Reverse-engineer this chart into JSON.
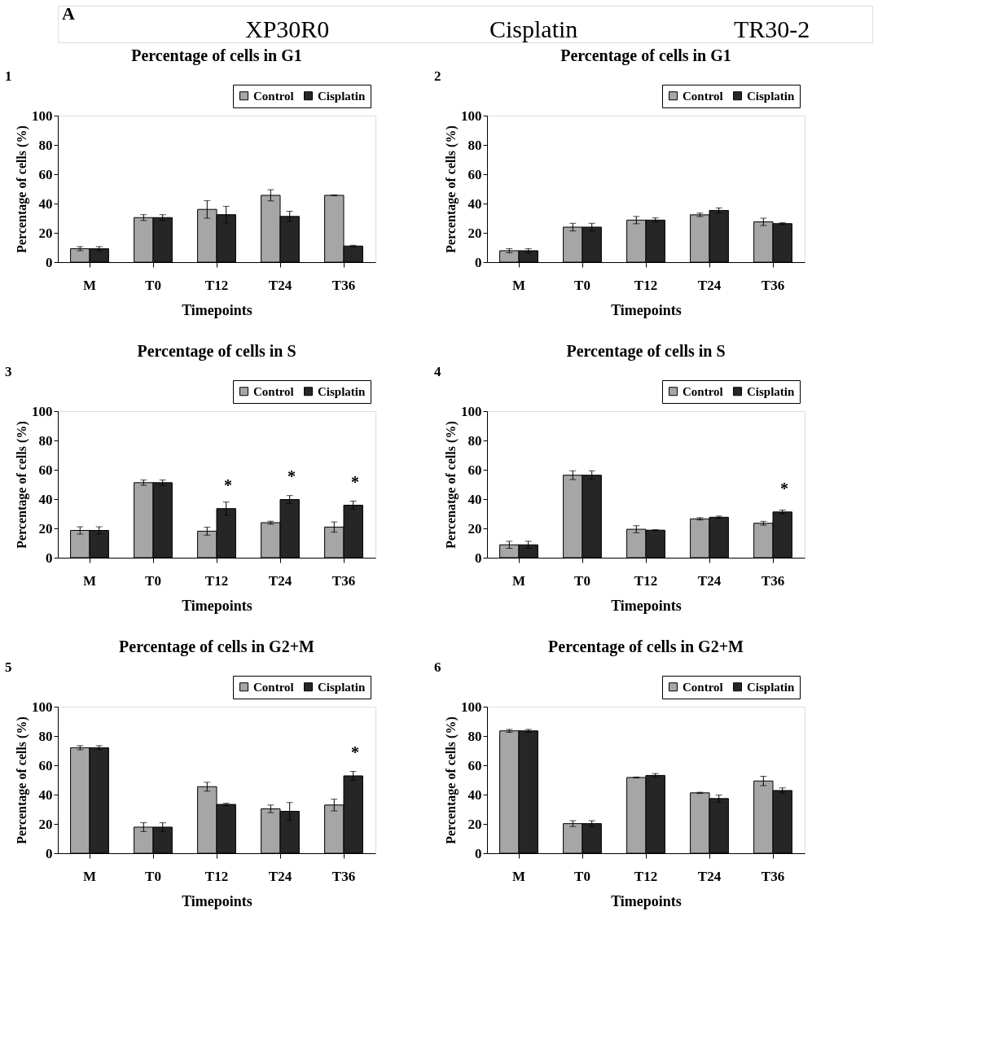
{
  "chart_data": [
    {
      "type": "other",
      "annotations": [
        "A",
        "XP30R0",
        "Cisplatin",
        "TR30-2"
      ]
    },
    {
      "type": "bar",
      "title": "Percentage of cells in G1",
      "xlabel": "Timepoints",
      "ylabel": "Percentage of cells (%)",
      "annotations": [
        "1"
      ],
      "categories": [
        "M",
        "T0",
        "T12",
        "T24",
        "T36"
      ],
      "ylim": [
        0,
        100
      ],
      "yticks": [
        0,
        20,
        40,
        60,
        80,
        100
      ],
      "legend": "top right",
      "grid": false,
      "series": [
        {
          "name": "Control",
          "color": "#a6a6a6",
          "values": [
            9.2,
            30.4,
            36,
            45.6,
            45.6
          ],
          "errors": [
            1.4,
            2,
            6,
            3.8,
            0.3
          ]
        },
        {
          "name": "Cisplatin",
          "color": "#262626",
          "values": [
            9.2,
            30.4,
            32.4,
            31.2,
            11
          ],
          "errors": [
            1.4,
            2,
            5.7,
            3.5,
            0.5
          ]
        }
      ]
    },
    {
      "type": "bar",
      "title": "Percentage of cells in G1",
      "xlabel": "Timepoints",
      "ylabel": "Percentage of cells (%)",
      "annotations": [
        "2"
      ],
      "categories": [
        "M",
        "T0",
        "T12",
        "T24",
        "T36"
      ],
      "ylim": [
        0,
        100
      ],
      "yticks": [
        0,
        20,
        40,
        60,
        80,
        100
      ],
      "legend": "top right",
      "grid": false,
      "series": [
        {
          "name": "Control",
          "color": "#a6a6a6",
          "values": [
            7.8,
            23.9,
            28.7,
            32.3,
            27.5
          ],
          "errors": [
            1.4,
            2.6,
            2.5,
            1.2,
            2.5
          ]
        },
        {
          "name": "Cisplatin",
          "color": "#262626",
          "values": [
            7.8,
            23.9,
            28.7,
            35.3,
            26.3
          ],
          "errors": [
            1.4,
            2.6,
            1.5,
            1.7,
            0.7
          ]
        }
      ]
    },
    {
      "type": "bar",
      "title": "Percentage of cells in S",
      "xlabel": "Timepoints",
      "ylabel": "Percentage of cells (%)",
      "annotations": [
        "3",
        {
          "text": "*",
          "x": "T12",
          "y": 33.5
        },
        {
          "text": "*",
          "x": "T24",
          "y": 39.7
        },
        {
          "text": "*",
          "x": "T36",
          "y": 35.8
        }
      ],
      "categories": [
        "M",
        "T0",
        "T12",
        "T24",
        "T36"
      ],
      "ylim": [
        0,
        100
      ],
      "yticks": [
        0,
        20,
        40,
        60,
        80,
        100
      ],
      "legend": "top right",
      "grid": false,
      "series": [
        {
          "name": "Control",
          "color": "#a6a6a6",
          "values": [
            18.6,
            51.2,
            18.1,
            23.9,
            20.9
          ],
          "errors": [
            2.5,
            1.8,
            2.7,
            1,
            3.5
          ]
        },
        {
          "name": "Cisplatin",
          "color": "#262626",
          "values": [
            18.6,
            51.2,
            33.5,
            39.7,
            35.8
          ],
          "errors": [
            2.5,
            1.8,
            4.5,
            2.7,
            2.8
          ]
        }
      ]
    },
    {
      "type": "bar",
      "title": "Percentage of cells in S",
      "xlabel": "Timepoints",
      "ylabel": "Percenatge of cells (%)",
      "annotations": [
        "4",
        {
          "text": "*",
          "x": "T36",
          "y": 31.2
        }
      ],
      "categories": [
        "M",
        "T0",
        "T12",
        "T24",
        "T36"
      ],
      "ylim": [
        0,
        100
      ],
      "yticks": [
        0,
        20,
        40,
        60,
        80,
        100
      ],
      "legend": "top right",
      "grid": false,
      "series": [
        {
          "name": "Control",
          "color": "#a6a6a6",
          "values": [
            8.8,
            56.3,
            19.4,
            26.5,
            23.5
          ],
          "errors": [
            2.4,
            3,
            2.4,
            0.8,
            1.3
          ]
        },
        {
          "name": "Cisplatin",
          "color": "#262626",
          "values": [
            8.8,
            56.3,
            18.8,
            27.6,
            31.2
          ],
          "errors": [
            2.4,
            3,
            0.3,
            0.8,
            1.3
          ]
        }
      ]
    },
    {
      "type": "bar",
      "title": "Percentage of cells in G2+M",
      "xlabel": "Timepoints",
      "ylabel": "Percentage of cells (%)",
      "annotations": [
        "5",
        {
          "text": "*",
          "x": "T36",
          "y": 52.8
        }
      ],
      "categories": [
        "M",
        "T0",
        "T12",
        "T24",
        "T36"
      ],
      "ylim": [
        0,
        100
      ],
      "yticks": [
        0,
        20,
        40,
        60,
        80,
        100
      ],
      "legend": "top right",
      "grid": false,
      "series": [
        {
          "name": "Control",
          "color": "#a6a6a6",
          "values": [
            72,
            17.8,
            45.4,
            30.3,
            32.9
          ],
          "errors": [
            1.4,
            3,
            3,
            2.6,
            4
          ]
        },
        {
          "name": "Cisplatin",
          "color": "#262626",
          "values": [
            72,
            17.8,
            33.3,
            28.6,
            52.8
          ],
          "errors": [
            1.4,
            3,
            0.8,
            6,
            3
          ]
        }
      ]
    },
    {
      "type": "bar",
      "title": "Percentage of cells in G2+M",
      "xlabel": "Timepoints",
      "ylabel": "Percentage of cells (%)",
      "annotations": [
        "6"
      ],
      "categories": [
        "M",
        "T0",
        "T12",
        "T24",
        "T36"
      ],
      "ylim": [
        0,
        100
      ],
      "yticks": [
        0,
        20,
        40,
        60,
        80,
        100
      ],
      "legend": "top right",
      "grid": false,
      "series": [
        {
          "name": "Control",
          "color": "#a6a6a6",
          "values": [
            83.5,
            20.2,
            51.7,
            41.2,
            49.3
          ],
          "errors": [
            1,
            2,
            0.3,
            0.4,
            3.2
          ]
        },
        {
          "name": "Cisplatin",
          "color": "#262626",
          "values": [
            83.5,
            20.2,
            53.1,
            37.3,
            42.8
          ],
          "errors": [
            1,
            2,
            1.3,
            2.4,
            1.8
          ]
        }
      ]
    }
  ]
}
